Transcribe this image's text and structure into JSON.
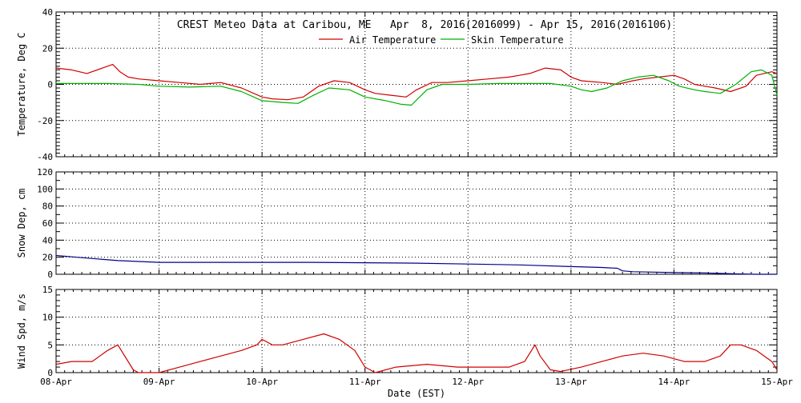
{
  "title": "CREST Meteo Data at Caribou, ME   Apr  8, 2016(2016099) - Apr 15, 2016(2016106)",
  "xlabel": "Date (EST)",
  "x_ticks": [
    "08-Apr",
    "09-Apr",
    "10-Apr",
    "11-Apr",
    "12-Apr",
    "13-Apr",
    "14-Apr",
    "15-Apr"
  ],
  "colors": {
    "air": "#d00000",
    "skin": "#00b000",
    "snow": "#00008b",
    "wind": "#d00000",
    "grid": "#000000"
  },
  "chart_data": [
    {
      "type": "line",
      "title": "CREST Meteo Data at Caribou, ME   Apr  8, 2016(2016099) - Apr 15, 2016(2016106)",
      "ylabel": "Temperature, Deg C",
      "xlim": [
        0,
        7
      ],
      "ylim": [
        -40,
        40
      ],
      "y_ticks": [
        -40,
        -20,
        0,
        20,
        40
      ],
      "grid": true,
      "legend": "top-center",
      "series": [
        {
          "name": "Air Temperature",
          "color": "#d00000",
          "x": [
            0,
            0.15,
            0.3,
            0.45,
            0.55,
            0.62,
            0.7,
            0.8,
            1.0,
            1.2,
            1.4,
            1.5,
            1.6,
            1.8,
            2.0,
            2.1,
            2.25,
            2.4,
            2.55,
            2.7,
            2.85,
            3.0,
            3.1,
            3.25,
            3.4,
            3.5,
            3.65,
            3.8,
            4.0,
            4.2,
            4.4,
            4.5,
            4.6,
            4.75,
            4.9,
            5.0,
            5.1,
            5.3,
            5.45,
            5.6,
            5.7,
            5.85,
            6.0,
            6.1,
            6.2,
            6.3,
            6.4,
            6.55,
            6.7,
            6.8,
            6.95,
            7.0
          ],
          "y": [
            9,
            8,
            6,
            9,
            11,
            7,
            4,
            3,
            2,
            1,
            0,
            0.5,
            1,
            -2,
            -7,
            -8,
            -8.5,
            -7,
            -1,
            2,
            1,
            -3,
            -5,
            -6,
            -7,
            -3,
            1,
            1,
            2,
            3,
            4,
            5,
            6,
            9,
            8,
            4,
            2,
            1,
            0,
            2,
            3,
            4,
            5,
            3,
            0,
            -1,
            -2,
            -4,
            -1,
            5,
            7,
            6
          ]
        },
        {
          "name": "Skin Temperature",
          "color": "#00b000",
          "x": [
            0,
            0.3,
            0.5,
            0.8,
            1.0,
            1.3,
            1.6,
            1.8,
            2.0,
            2.2,
            2.35,
            2.5,
            2.65,
            2.85,
            3.0,
            3.2,
            3.35,
            3.45,
            3.6,
            3.75,
            4.0,
            4.3,
            4.6,
            4.8,
            5.0,
            5.1,
            5.2,
            5.35,
            5.5,
            5.65,
            5.8,
            5.95,
            6.05,
            6.2,
            6.3,
            6.45,
            6.6,
            6.75,
            6.85,
            6.95,
            7.0
          ],
          "y": [
            0.5,
            0.5,
            0.5,
            0,
            -1,
            -1.5,
            -1,
            -4,
            -9,
            -10,
            -10.5,
            -6,
            -2,
            -3,
            -7,
            -9,
            -11,
            -11.5,
            -3,
            0,
            0,
            0.5,
            0.5,
            0.5,
            -1,
            -3,
            -4,
            -2,
            2,
            4,
            5,
            2,
            -1,
            -3,
            -4,
            -5,
            0,
            7,
            8,
            5,
            -6
          ]
        }
      ]
    },
    {
      "type": "line",
      "ylabel": "Snow Dep, cm",
      "xlim": [
        0,
        7
      ],
      "ylim": [
        0,
        120
      ],
      "y_ticks": [
        0,
        20,
        40,
        60,
        80,
        100,
        120
      ],
      "grid": true,
      "series": [
        {
          "color": "#00008b",
          "x": [
            0,
            0.2,
            0.4,
            0.6,
            0.8,
            1.0,
            1.5,
            2.0,
            2.5,
            3.0,
            3.5,
            4.0,
            4.5,
            5.0,
            5.3,
            5.45,
            5.5,
            5.6,
            5.8,
            6.0,
            6.3,
            6.6,
            6.8,
            7.0
          ],
          "y": [
            22,
            20,
            18,
            16,
            15,
            14,
            14,
            14,
            14,
            13.5,
            13,
            12,
            11,
            9,
            8,
            7,
            4,
            3,
            2.5,
            2,
            1.5,
            0.5,
            0,
            0
          ]
        }
      ]
    },
    {
      "type": "line",
      "ylabel": "Wind Spd, m/s",
      "xlim": [
        0,
        7
      ],
      "ylim": [
        0,
        15
      ],
      "y_ticks": [
        0,
        5,
        10,
        15
      ],
      "grid": true,
      "series": [
        {
          "color": "#d00000",
          "x": [
            0,
            0.15,
            0.35,
            0.5,
            0.6,
            0.75,
            0.8,
            1.0,
            1.2,
            1.4,
            1.6,
            1.8,
            1.95,
            2.0,
            2.1,
            2.2,
            2.4,
            2.6,
            2.75,
            2.9,
            3.0,
            3.1,
            3.3,
            3.6,
            3.9,
            4.2,
            4.4,
            4.55,
            4.65,
            4.7,
            4.8,
            4.9,
            5.1,
            5.3,
            5.5,
            5.7,
            5.9,
            6.1,
            6.3,
            6.45,
            6.55,
            6.65,
            6.8,
            6.95,
            7.0
          ],
          "y": [
            1.5,
            2,
            2,
            4,
            5,
            0.5,
            0,
            0,
            1,
            2,
            3,
            4,
            5,
            6,
            5,
            5,
            6,
            7,
            6,
            4,
            1,
            0,
            1,
            1.5,
            1,
            1,
            1,
            2,
            5,
            3,
            0.5,
            0.2,
            1,
            2,
            3,
            3.5,
            3,
            2,
            2,
            3,
            5,
            5,
            4,
            2,
            0.5
          ]
        }
      ]
    }
  ]
}
